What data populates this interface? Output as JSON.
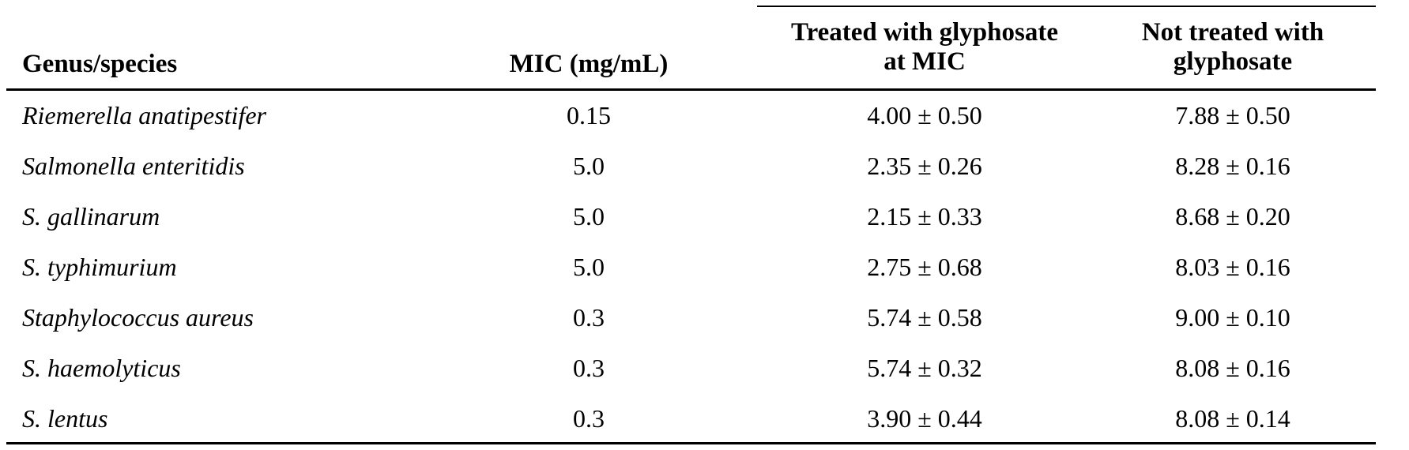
{
  "table": {
    "headers": {
      "species": "Genus/species",
      "mic": "MIC (mg/mL)",
      "treated_line1": "Treated with glyphosate",
      "treated_line2": "at MIC",
      "not_treated_line1": "Not treated with",
      "not_treated_line2": "glyphosate"
    },
    "rows": [
      {
        "species": "Riemerella anatipestifer",
        "mic": "0.15",
        "treated": "4.00 ± 0.50",
        "not_treated": "7.88 ± 0.50"
      },
      {
        "species": "Salmonella enteritidis",
        "mic": "5.0",
        "treated": "2.35 ± 0.26",
        "not_treated": "8.28 ± 0.16"
      },
      {
        "species": "S. gallinarum",
        "mic": "5.0",
        "treated": "2.15 ± 0.33",
        "not_treated": "8.68 ± 0.20"
      },
      {
        "species": "S. typhimurium",
        "mic": "5.0",
        "treated": "2.75 ± 0.68",
        "not_treated": "8.03 ± 0.16"
      },
      {
        "species": "Staphylococcus aureus",
        "mic": "0.3",
        "treated": "5.74 ± 0.58",
        "not_treated": "9.00 ± 0.10"
      },
      {
        "species": "S. haemolyticus",
        "mic": "0.3",
        "treated": "5.74 ± 0.32",
        "not_treated": "8.08 ± 0.16"
      },
      {
        "species": "S. lentus",
        "mic": "0.3",
        "treated": "3.90 ± 0.44",
        "not_treated": "8.08 ± 0.14"
      }
    ]
  }
}
